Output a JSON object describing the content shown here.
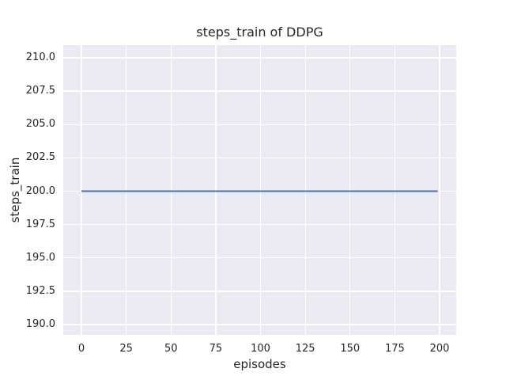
{
  "chart": {
    "title": "steps_train of DDPG",
    "xlabel": "episodes",
    "ylabel": "steps_train"
  },
  "chart_data": {
    "type": "line",
    "title": "steps_train of DDPG",
    "xlabel": "episodes",
    "ylabel": "steps_train",
    "x_ticks": [
      0,
      25,
      50,
      75,
      100,
      125,
      150,
      175,
      200
    ],
    "x_tick_labels": [
      "0",
      "25",
      "50",
      "75",
      "100",
      "125",
      "150",
      "175",
      "200"
    ],
    "y_ticks": [
      190.0,
      192.5,
      195.0,
      197.5,
      200.0,
      202.5,
      205.0,
      207.5,
      210.0
    ],
    "y_tick_labels": [
      "190.0",
      "192.5",
      "195.0",
      "197.5",
      "200.0",
      "202.5",
      "205.0",
      "207.5",
      "210.0"
    ],
    "xlim": [
      -10.15,
      209.25
    ],
    "ylim": [
      189.23,
      210.95
    ],
    "grid": true,
    "legend": false,
    "series": [
      {
        "name": "steps_train",
        "color": "#4c72b0",
        "x": [
          0,
          199
        ],
        "y": [
          200,
          200
        ],
        "note": "constant value 200 for all 200 episodes"
      }
    ],
    "style": {
      "figure_bg": "#ffffff",
      "plot_bg": "#eaeaf2",
      "grid_color": "#ffffff",
      "text_color": "#262626",
      "line_width": 2
    }
  }
}
